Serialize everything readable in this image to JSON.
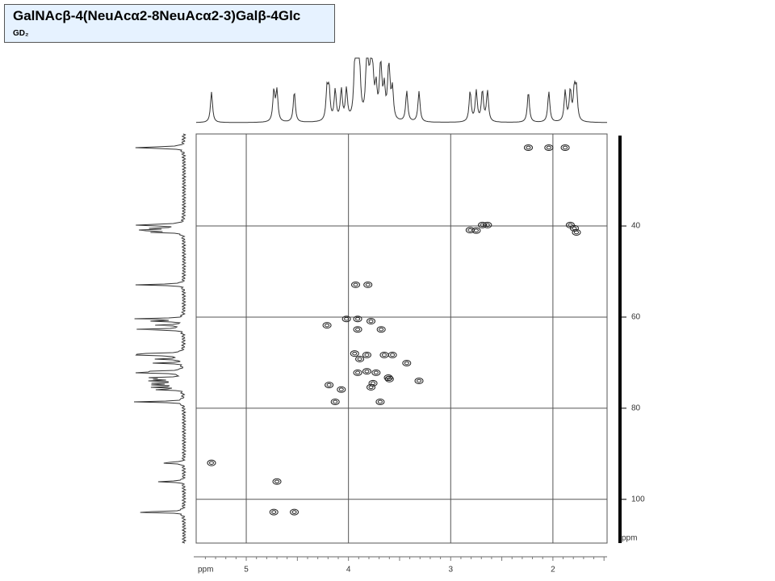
{
  "chart_data": {
    "type": "scatter",
    "title": "GalNAcβ-4(NeuAcα2-8NeuAcα2-3)Galβ-4Glc",
    "subtitle": "GD₂",
    "x_label": "ppm",
    "y_label": "ppm",
    "xlim": [
      5.49,
      1.47
    ],
    "ylim": [
      19.8,
      109.6
    ],
    "xticks": [
      5,
      4,
      3,
      2
    ],
    "yticks": [
      40,
      60,
      80,
      100
    ],
    "grid": true,
    "color": "#222222",
    "x": [
      2.04,
      2.24,
      1.88,
      2.81,
      2.75,
      2.69,
      2.64,
      1.83,
      1.79,
      1.77,
      3.93,
      3.81,
      4.21,
      4.02,
      3.91,
      3.78,
      3.68,
      3.91,
      3.94,
      3.89,
      3.82,
      3.65,
      3.57,
      3.43,
      3.91,
      3.82,
      3.73,
      3.61,
      3.31,
      4.19,
      4.07,
      3.76,
      3.6,
      3.78,
      4.13,
      3.69,
      5.34,
      4.7,
      4.73,
      4.53
    ],
    "values": [
      22.8,
      22.8,
      22.8,
      40.9,
      41,
      39.8,
      39.8,
      39.8,
      40.5,
      41.4,
      52.9,
      52.9,
      61.8,
      60.4,
      60.4,
      60.9,
      62.7,
      62.7,
      68,
      69.2,
      68.3,
      68.3,
      68.3,
      70.1,
      72.2,
      71.9,
      72.2,
      73.3,
      74,
      74.9,
      75.9,
      74.5,
      73.6,
      75.4,
      78.6,
      78.6,
      92,
      96.1,
      102.8,
      102.8
    ]
  }
}
